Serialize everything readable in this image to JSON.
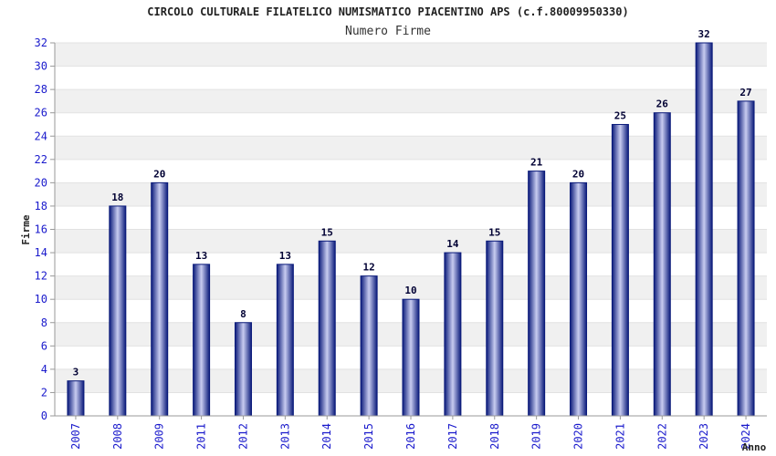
{
  "chart_data": {
    "type": "bar",
    "title": "CIRCOLO CULTURALE FILATELICO NUMISMATICO PIACENTINO APS (c.f.80009950330)",
    "subtitle": "Numero Firme",
    "xlabel": "Anno",
    "ylabel": "Firme",
    "ylim": [
      0,
      32
    ],
    "ytick_step": 2,
    "grid": true,
    "categories": [
      "2007",
      "2008",
      "2009",
      "2011",
      "2012",
      "2013",
      "2014",
      "2015",
      "2016",
      "2017",
      "2018",
      "2019",
      "2020",
      "2021",
      "2022",
      "2023",
      "2024"
    ],
    "values": [
      3,
      18,
      20,
      13,
      8,
      13,
      15,
      12,
      10,
      14,
      15,
      21,
      20,
      25,
      26,
      32,
      27
    ],
    "colors": {
      "bar_edge": "#0a1a7a",
      "bar_center": "#c8ccf0",
      "grid_band": "#f0f0f0",
      "tick_text": "#1a1acc",
      "axis": "#999999"
    }
  }
}
